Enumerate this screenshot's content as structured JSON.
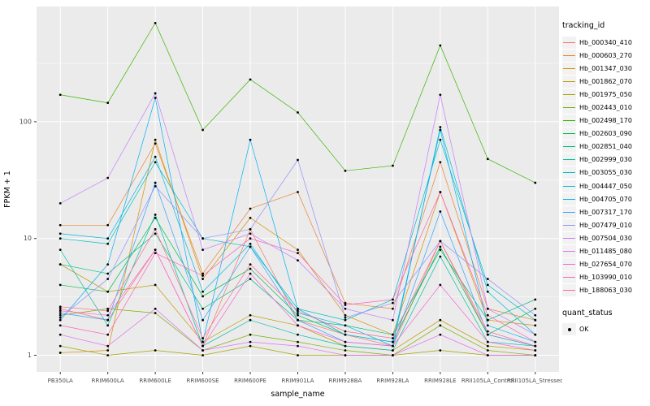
{
  "chart_data": {
    "type": "line",
    "title": "",
    "xlabel": "sample_name",
    "ylabel": "FPKM + 1",
    "y_scale": "log10",
    "y_domain": [
      0.72,
      970
    ],
    "y_major_gridlines": [
      1,
      10,
      100
    ],
    "y_minor_gridlines": [
      3.162,
      31.62,
      316.2
    ],
    "y_tick_labels": [
      "1",
      "10",
      "100"
    ],
    "grid": true,
    "legend_position": "right",
    "panel_bg": "#EBEBEB",
    "grid_color": "#FFFFFF",
    "point_color": "#000000",
    "tick_label_color": "#4D4D4D",
    "axis_title_color": "#000000",
    "categories": [
      "PB350LA",
      "RRIM600LA",
      "RRIM600LE",
      "RRIM600SE",
      "RRIM600PE",
      "RRIM901LA",
      "RRIM928BA",
      "RRIM928LA",
      "RRIM928LE",
      "RRII105LA_Control",
      "RRII105LA_Stressed"
    ],
    "legend_titles": {
      "series": "tracking_id",
      "status": "quant_status"
    },
    "quant_status": {
      "label": "OK"
    },
    "series": [
      {
        "name": "Hb_000340_410",
        "color": "#F8766D",
        "values": [
          2.5,
          2.0,
          8,
          1.2,
          12,
          2.0,
          1.5,
          1.2,
          9.5,
          1.5,
          1.2
        ]
      },
      {
        "name": "Hb_000603_270",
        "color": "#EA8331",
        "values": [
          13,
          13,
          65,
          5,
          18,
          25,
          2.8,
          2.5,
          45,
          2.5,
          2.0
        ]
      },
      {
        "name": "Hb_001347_030",
        "color": "#D89000",
        "values": [
          1.05,
          1.1,
          70,
          4.5,
          15,
          8,
          2.2,
          1.5,
          25,
          2.0,
          1.8
        ]
      },
      {
        "name": "Hb_001862_070",
        "color": "#C09B00",
        "values": [
          6,
          3.5,
          4,
          1.3,
          2.2,
          1.8,
          1.2,
          1.1,
          2.0,
          1.2,
          1.1
        ]
      },
      {
        "name": "Hb_001975_050",
        "color": "#A3A500",
        "values": [
          1.2,
          1.0,
          1.1,
          1.0,
          1.2,
          1.0,
          1.0,
          1.0,
          1.1,
          1.0,
          1.0
        ]
      },
      {
        "name": "Hb_002443_010",
        "color": "#7CAE00",
        "values": [
          2.2,
          2.5,
          2.3,
          1.1,
          1.5,
          1.3,
          1.1,
          1.0,
          1.8,
          1.1,
          1.0
        ]
      },
      {
        "name": "Hb_002498_170",
        "color": "#39B600",
        "values": [
          170,
          145,
          700,
          85,
          230,
          120,
          38,
          42,
          450,
          48,
          30
        ]
      },
      {
        "name": "Hb_002603_090",
        "color": "#00BB4E",
        "values": [
          4,
          3.5,
          15,
          3.2,
          5.5,
          2.2,
          1.5,
          1.3,
          8.5,
          1.5,
          2.5
        ]
      },
      {
        "name": "Hb_002851_040",
        "color": "#00BF7D",
        "values": [
          6,
          5,
          11,
          2.5,
          4.5,
          2.0,
          1.8,
          1.5,
          8,
          2.0,
          3.0
        ]
      },
      {
        "name": "Hb_002999_030",
        "color": "#00C1A3",
        "values": [
          8,
          1.8,
          16,
          1.2,
          2.0,
          1.5,
          1.2,
          1.1,
          7,
          1.3,
          1.2
        ]
      },
      {
        "name": "Hb_003055_030",
        "color": "#00BFC4",
        "values": [
          10,
          9,
          45,
          10,
          8.5,
          2.5,
          2.0,
          3.0,
          70,
          4.0,
          2.0
        ]
      },
      {
        "name": "Hb_004447_050",
        "color": "#00BAE0",
        "values": [
          11,
          10,
          50,
          3.5,
          9,
          2.3,
          1.8,
          1.2,
          90,
          3.5,
          1.5
        ]
      },
      {
        "name": "Hb_004705_070",
        "color": "#00B0F6",
        "values": [
          2.0,
          6,
          160,
          1.3,
          70,
          2.5,
          1.5,
          1.3,
          85,
          1.8,
          1.3
        ]
      },
      {
        "name": "Hb_007317_170",
        "color": "#35A2FF",
        "values": [
          2.3,
          2.0,
          30,
          2.0,
          8.5,
          2.0,
          1.3,
          1.2,
          17,
          1.5,
          1.2
        ]
      },
      {
        "name": "Hb_007479_010",
        "color": "#9590FF",
        "values": [
          2.1,
          4.5,
          28,
          10,
          12,
          47,
          2.1,
          2.8,
          9.5,
          4.5,
          2.2
        ]
      },
      {
        "name": "Hb_007504_030",
        "color": "#C77CFF",
        "values": [
          20,
          33,
          175,
          8,
          11,
          6.5,
          2.5,
          2.0,
          170,
          2.5,
          1.5
        ]
      },
      {
        "name": "Hb_011485_080",
        "color": "#E76BF3",
        "values": [
          1.5,
          1.2,
          2.5,
          1.1,
          1.3,
          1.2,
          1.0,
          1.0,
          1.5,
          1.0,
          1.0
        ]
      },
      {
        "name": "Hb_027654_070",
        "color": "#FA62DB",
        "values": [
          2.4,
          2.2,
          8,
          1.2,
          5,
          1.8,
          1.3,
          1.2,
          4,
          1.3,
          1.1
        ]
      },
      {
        "name": "Hb_103990_010",
        "color": "#FF62BC",
        "values": [
          1.8,
          1.5,
          7.5,
          4.8,
          10,
          7.5,
          2.7,
          3.0,
          25,
          2.2,
          1.3
        ]
      },
      {
        "name": "Hb_188063_030",
        "color": "#FF6A98",
        "values": [
          2.6,
          2.4,
          12,
          1.4,
          6,
          2.4,
          1.6,
          1.4,
          9.5,
          1.6,
          1.2
        ]
      }
    ]
  }
}
